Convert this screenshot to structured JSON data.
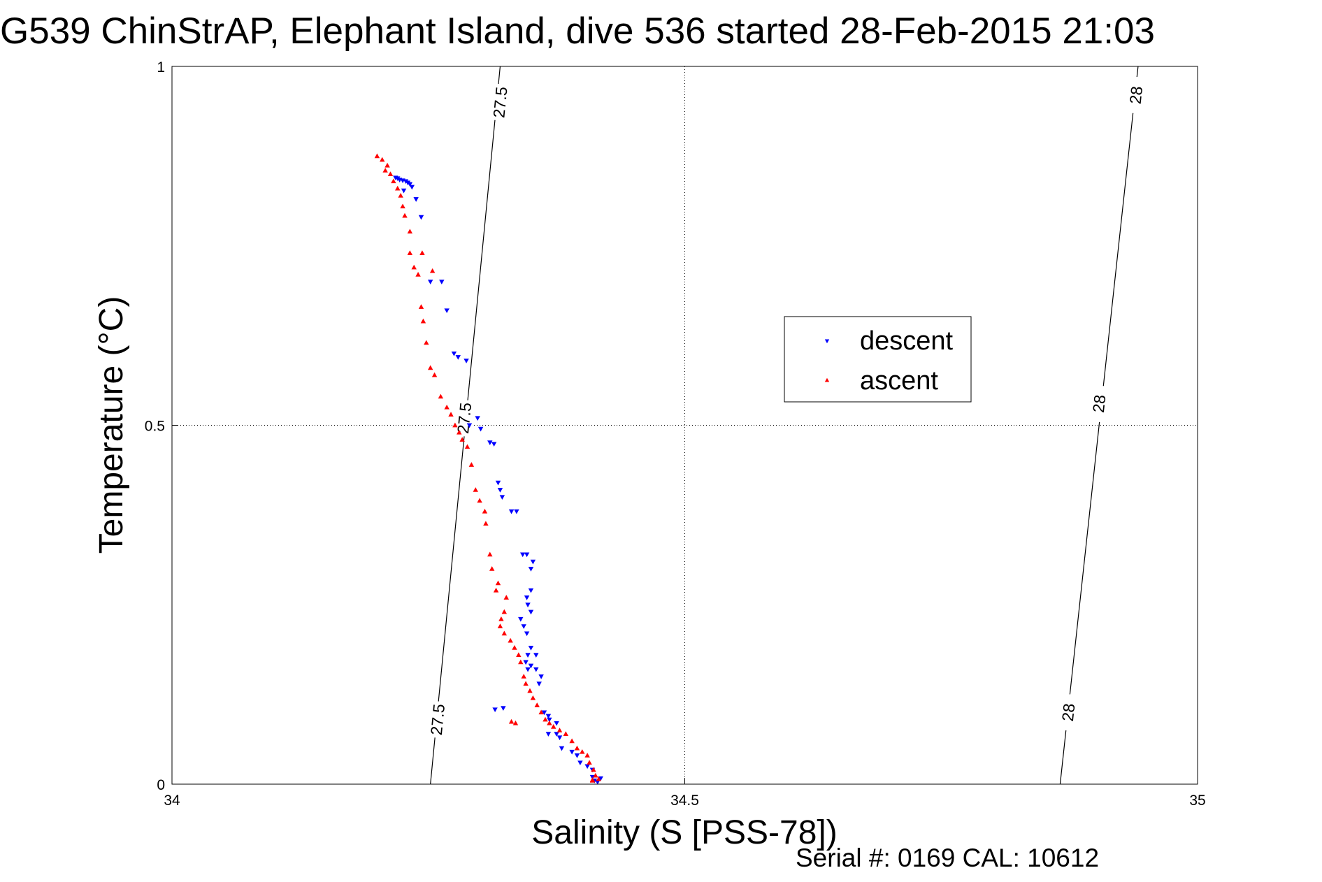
{
  "chart_data": {
    "type": "scatter",
    "title": "G539 ChinStrAP, Elephant Island, dive 536 started 28-Feb-2015 21:03",
    "xlabel": "Salinity (S [PSS-78])",
    "ylabel": "Temperature (°C)",
    "xlim": [
      34,
      35
    ],
    "ylim": [
      0,
      1
    ],
    "x_ticks": [
      34,
      34.5,
      35
    ],
    "x_tick_labels": [
      "34",
      "34.5",
      "35"
    ],
    "y_ticks": [
      0,
      0.5,
      1
    ],
    "y_tick_labels": [
      "0",
      "0.5",
      "1"
    ],
    "grid": true,
    "legend_position": "center-right",
    "footer": "Serial #: 0169 CAL: 10612",
    "isopycnals": [
      {
        "label": "27.5",
        "points": [
          [
            34.252,
            0
          ],
          [
            34.32,
            1
          ]
        ],
        "label_points": [
          [
            34.259,
            0.09
          ],
          [
            34.285,
            0.51
          ],
          [
            34.32,
            0.95
          ]
        ]
      },
      {
        "label": "28",
        "points": [
          [
            34.866,
            0
          ],
          [
            34.942,
            1
          ]
        ],
        "label_points": [
          [
            34.874,
            0.1
          ],
          [
            34.904,
            0.53
          ],
          [
            34.94,
            0.96
          ]
        ]
      }
    ],
    "series": [
      {
        "name": "descent",
        "color": "#0000ff",
        "marker": "triangle-down",
        "x": [
          34.218,
          34.22,
          34.222,
          34.225,
          34.228,
          34.23,
          34.232,
          34.234,
          34.226,
          34.238,
          34.243,
          34.252,
          34.263,
          34.268,
          34.275,
          34.279,
          34.287,
          34.29,
          34.298,
          34.301,
          34.31,
          34.314,
          34.318,
          34.32,
          34.322,
          34.336,
          34.331,
          34.342,
          34.346,
          34.352,
          34.35,
          34.35,
          34.346,
          34.347,
          34.35,
          34.34,
          34.343,
          34.346,
          34.35,
          34.347,
          34.345,
          34.347,
          34.35,
          34.355,
          34.355,
          34.36,
          34.358,
          34.363,
          34.367,
          34.368,
          34.367,
          34.375,
          34.378,
          34.38,
          34.39,
          34.395,
          34.398,
          34.405,
          34.41,
          34.41,
          34.412,
          34.418,
          34.415,
          34.375,
          34.315,
          34.323
        ],
        "y": [
          0.845,
          0.844,
          0.842,
          0.841,
          0.84,
          0.838,
          0.836,
          0.832,
          0.827,
          0.815,
          0.79,
          0.7,
          0.7,
          0.66,
          0.6,
          0.595,
          0.59,
          0.5,
          0.51,
          0.495,
          0.476,
          0.474,
          0.42,
          0.41,
          0.4,
          0.38,
          0.38,
          0.32,
          0.32,
          0.31,
          0.3,
          0.27,
          0.26,
          0.25,
          0.24,
          0.23,
          0.22,
          0.21,
          0.19,
          0.18,
          0.17,
          0.16,
          0.165,
          0.16,
          0.18,
          0.15,
          0.14,
          0.1,
          0.095,
          0.09,
          0.07,
          0.07,
          0.065,
          0.05,
          0.045,
          0.04,
          0.03,
          0.025,
          0.02,
          0.01,
          0.005,
          0.008,
          0.003,
          0.085,
          0.104,
          0.106
        ]
      },
      {
        "name": "ascent",
        "color": "#ff0000",
        "marker": "triangle-up",
        "x": [
          34.2,
          34.205,
          34.21,
          34.213,
          34.216,
          34.22,
          34.223,
          34.225,
          34.227,
          34.232,
          34.232,
          34.236,
          34.24,
          34.243,
          34.245,
          34.248,
          34.252,
          34.256,
          34.262,
          34.268,
          34.272,
          34.276,
          34.28,
          34.283,
          34.288,
          34.292,
          34.296,
          34.3,
          34.305,
          34.306,
          34.31,
          34.312,
          34.318,
          34.316,
          34.326,
          34.324,
          34.321,
          34.32,
          34.324,
          34.33,
          34.334,
          34.338,
          34.34,
          34.343,
          34.345,
          34.349,
          34.352,
          34.356,
          34.36,
          34.364,
          34.368,
          34.372,
          34.378,
          34.384,
          34.39,
          34.395,
          34.4,
          34.405,
          34.407,
          34.411,
          34.413,
          34.416,
          34.41,
          34.41,
          34.335,
          34.331,
          34.254,
          34.244,
          34.208
        ],
        "y": [
          0.875,
          0.87,
          0.862,
          0.85,
          0.84,
          0.83,
          0.82,
          0.805,
          0.792,
          0.77,
          0.74,
          0.72,
          0.71,
          0.665,
          0.645,
          0.615,
          0.58,
          0.57,
          0.54,
          0.525,
          0.515,
          0.5,
          0.49,
          0.48,
          0.47,
          0.445,
          0.41,
          0.395,
          0.38,
          0.363,
          0.32,
          0.3,
          0.28,
          0.27,
          0.26,
          0.24,
          0.23,
          0.22,
          0.21,
          0.2,
          0.19,
          0.18,
          0.17,
          0.15,
          0.14,
          0.13,
          0.12,
          0.11,
          0.1,
          0.09,
          0.085,
          0.08,
          0.075,
          0.07,
          0.06,
          0.05,
          0.045,
          0.04,
          0.03,
          0.02,
          0.012,
          0.007,
          0.005,
          0.006,
          0.085,
          0.087,
          0.715,
          0.74,
          0.855
        ]
      }
    ]
  }
}
